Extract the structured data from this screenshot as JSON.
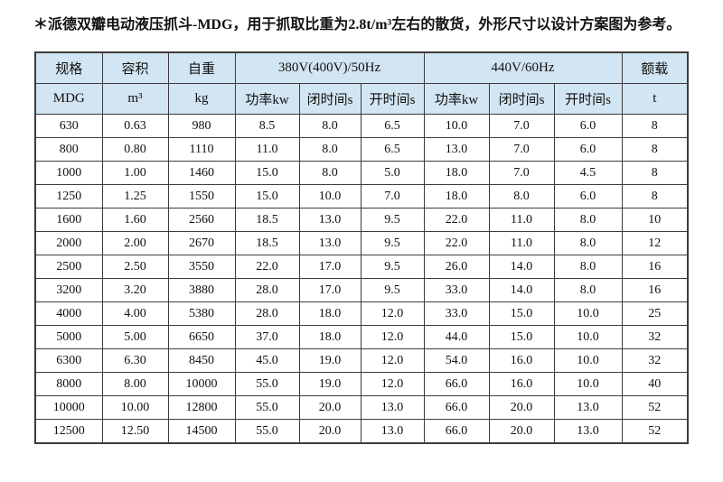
{
  "page": {
    "title": "＊派德双瓣电动液压抓斗-MDG，用于抓取比重为2.8t/m³左右的散货，外形尺寸以设计方案图为参考。"
  },
  "colors": {
    "header_bg": "#d2e5f2",
    "border": "#3c3c3c",
    "text": "#111111",
    "background": "#ffffff"
  },
  "table": {
    "header_row1": {
      "spec": "规格",
      "volume": "容积",
      "weight": "自重",
      "group_50hz": "380V(400V)/50Hz",
      "group_60hz": "440V/60Hz",
      "load": "额载"
    },
    "header_row2": {
      "spec_model": "MDG",
      "volume_unit": "m³",
      "weight_unit": "kg",
      "power": "功率kw",
      "close_time": "闭时间s",
      "open_time": "开时间s",
      "load_unit": "t"
    },
    "rows": [
      [
        "630",
        "0.63",
        "980",
        "8.5",
        "8.0",
        "6.5",
        "10.0",
        "7.0",
        "6.0",
        "8"
      ],
      [
        "800",
        "0.80",
        "1110",
        "11.0",
        "8.0",
        "6.5",
        "13.0",
        "7.0",
        "6.0",
        "8"
      ],
      [
        "1000",
        "1.00",
        "1460",
        "15.0",
        "8.0",
        "5.0",
        "18.0",
        "7.0",
        "4.5",
        "8"
      ],
      [
        "1250",
        "1.25",
        "1550",
        "15.0",
        "10.0",
        "7.0",
        "18.0",
        "8.0",
        "6.0",
        "8"
      ],
      [
        "1600",
        "1.60",
        "2560",
        "18.5",
        "13.0",
        "9.5",
        "22.0",
        "11.0",
        "8.0",
        "10"
      ],
      [
        "2000",
        "2.00",
        "2670",
        "18.5",
        "13.0",
        "9.5",
        "22.0",
        "11.0",
        "8.0",
        "12"
      ],
      [
        "2500",
        "2.50",
        "3550",
        "22.0",
        "17.0",
        "9.5",
        "26.0",
        "14.0",
        "8.0",
        "16"
      ],
      [
        "3200",
        "3.20",
        "3880",
        "28.0",
        "17.0",
        "9.5",
        "33.0",
        "14.0",
        "8.0",
        "16"
      ],
      [
        "4000",
        "4.00",
        "5380",
        "28.0",
        "18.0",
        "12.0",
        "33.0",
        "15.0",
        "10.0",
        "25"
      ],
      [
        "5000",
        "5.00",
        "6650",
        "37.0",
        "18.0",
        "12.0",
        "44.0",
        "15.0",
        "10.0",
        "32"
      ],
      [
        "6300",
        "6.30",
        "8450",
        "45.0",
        "19.0",
        "12.0",
        "54.0",
        "16.0",
        "10.0",
        "32"
      ],
      [
        "8000",
        "8.00",
        "10000",
        "55.0",
        "19.0",
        "12.0",
        "66.0",
        "16.0",
        "10.0",
        "40"
      ],
      [
        "10000",
        "10.00",
        "12800",
        "55.0",
        "20.0",
        "13.0",
        "66.0",
        "20.0",
        "13.0",
        "52"
      ],
      [
        "12500",
        "12.50",
        "14500",
        "55.0",
        "20.0",
        "13.0",
        "66.0",
        "20.0",
        "13.0",
        "52"
      ]
    ]
  }
}
